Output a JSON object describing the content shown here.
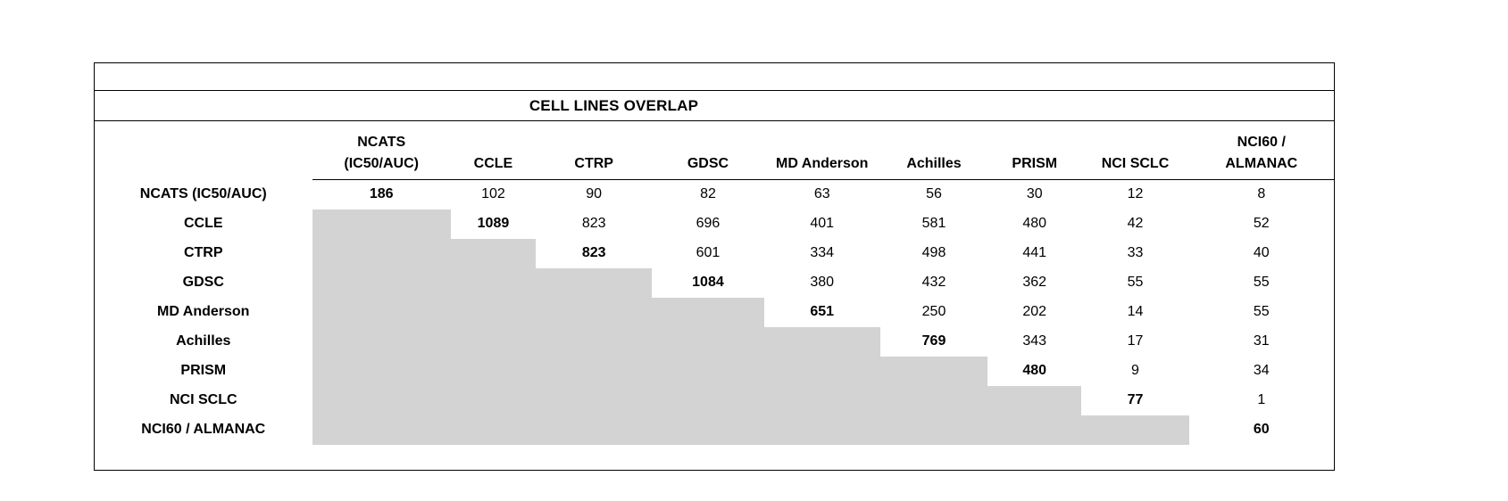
{
  "title": "CELL LINES OVERLAP",
  "colors": {
    "background": "#ffffff",
    "border": "#000000",
    "lower_triangle_fill": "#d3d3d3"
  },
  "chart_data": {
    "type": "table",
    "title": "CELL LINES OVERLAP",
    "description_visible": "Upper-triangular overlap matrix of cell line counts between datasets; diagonal values bold; lower triangle shaded gray.",
    "row_labels": [
      "NCATS (IC50/AUC)",
      "CCLE",
      "CTRP",
      "GDSC",
      "MD Anderson",
      "Achilles",
      "PRISM",
      "NCI SCLC",
      "NCI60 / ALMANAC"
    ],
    "column_headers": [
      [
        "NCATS",
        "(IC50/AUC)"
      ],
      [
        "CCLE"
      ],
      [
        "CTRP"
      ],
      [
        "GDSC"
      ],
      [
        "MD Anderson"
      ],
      [
        "Achilles"
      ],
      [
        "PRISM"
      ],
      [
        "NCI SCLC"
      ],
      [
        "NCI60 /",
        "ALMANAC"
      ]
    ],
    "matrix": [
      [
        186,
        102,
        90,
        82,
        63,
        56,
        30,
        12,
        8
      ],
      [
        null,
        1089,
        823,
        696,
        401,
        581,
        480,
        42,
        52
      ],
      [
        null,
        null,
        823,
        601,
        334,
        498,
        441,
        33,
        40
      ],
      [
        null,
        null,
        null,
        1084,
        380,
        432,
        362,
        55,
        55
      ],
      [
        null,
        null,
        null,
        null,
        651,
        250,
        202,
        14,
        55
      ],
      [
        null,
        null,
        null,
        null,
        null,
        769,
        343,
        17,
        31
      ],
      [
        null,
        null,
        null,
        null,
        null,
        null,
        480,
        9,
        34
      ],
      [
        null,
        null,
        null,
        null,
        null,
        null,
        null,
        77,
        1
      ],
      [
        null,
        null,
        null,
        null,
        null,
        null,
        null,
        null,
        60
      ]
    ],
    "diagonal_bold": true,
    "lower_triangle_fill": "#d3d3d3",
    "grid": false,
    "legend": false
  }
}
